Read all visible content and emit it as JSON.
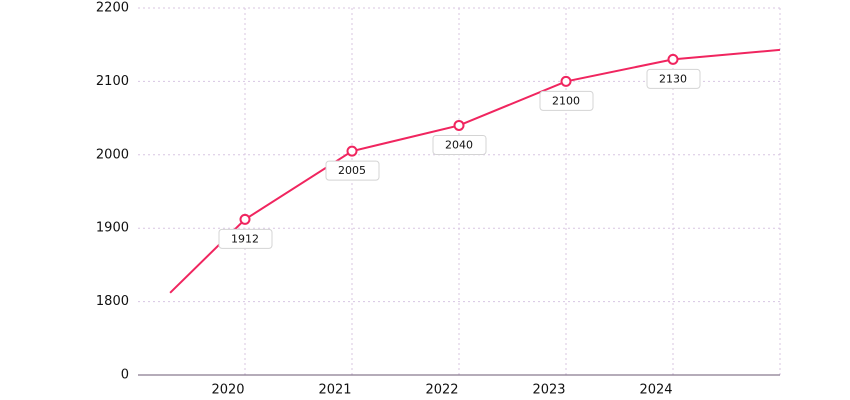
{
  "chart_data": {
    "type": "line",
    "x": [
      2019.3,
      2020,
      2021,
      2022,
      2023,
      2024,
      2025
    ],
    "series": [
      {
        "color": "#f0255f",
        "values": [
          1812,
          1912,
          2005,
          2040,
          2100,
          2130,
          2143
        ],
        "value_labels": [
          null,
          "1912",
          "2005",
          "2040",
          "2100",
          "2130",
          null
        ]
      }
    ],
    "xlim": [
      2019,
      2025
    ],
    "xticks": [
      2020,
      2021,
      2022,
      2023,
      2024
    ],
    "ylim": [
      0,
      2200
    ],
    "yticks": [
      0,
      1800,
      1900,
      2000,
      2100,
      2200
    ],
    "grid": true
  }
}
